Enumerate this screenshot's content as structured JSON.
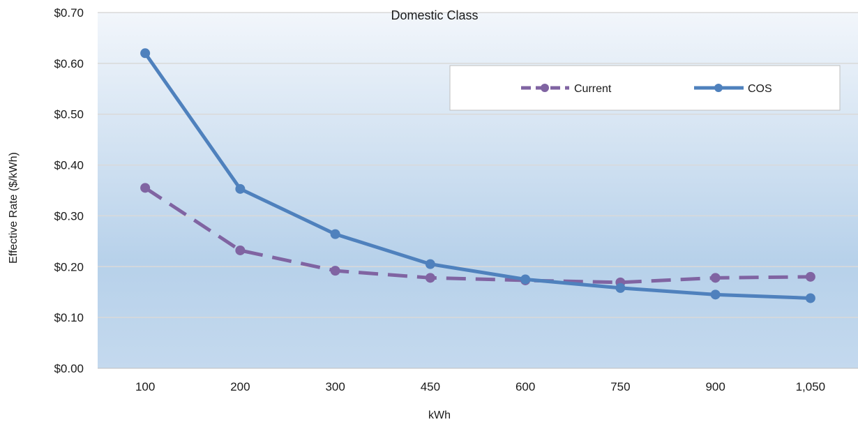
{
  "chart_data": {
    "type": "line",
    "title": "Domestic Class",
    "xlabel": "kWh",
    "ylabel": "Effective Rate ($/kWh)",
    "categories": [
      "100",
      "200",
      "300",
      "450",
      "600",
      "750",
      "900",
      "1,050"
    ],
    "ylim": [
      0,
      0.7
    ],
    "yticks": [
      0,
      0.1,
      0.2,
      0.3,
      0.4,
      0.5,
      0.6,
      0.7
    ],
    "ytick_labels": [
      "$0.00",
      "$0.10",
      "$0.20",
      "$0.30",
      "$0.40",
      "$0.50",
      "$0.60",
      "$0.70"
    ],
    "grid": true,
    "legend_position": "top-right",
    "series": [
      {
        "name": "Current",
        "values": [
          0.355,
          0.232,
          0.192,
          0.178,
          0.173,
          0.169,
          0.178,
          0.18
        ],
        "color": "#8064a2",
        "style": "dashed"
      },
      {
        "name": "COS",
        "values": [
          0.62,
          0.353,
          0.264,
          0.205,
          0.175,
          0.158,
          0.145,
          0.138
        ],
        "color": "#4f81bd",
        "style": "solid"
      }
    ]
  }
}
